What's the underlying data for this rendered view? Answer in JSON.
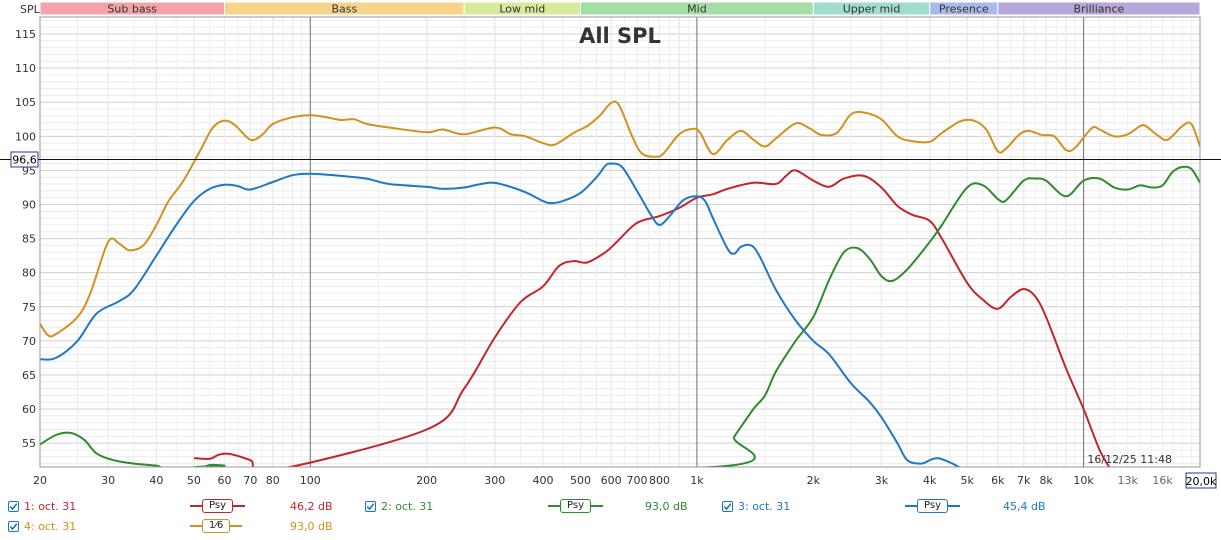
{
  "chart_data": {
    "type": "line",
    "title": "All SPL",
    "ylabel": "SPL",
    "x_scale": "log",
    "xlim": [
      20,
      20000
    ],
    "ylim": [
      51.5,
      117.5
    ],
    "y_ticks": [
      55,
      60,
      65,
      70,
      75,
      80,
      85,
      90,
      95,
      100,
      105,
      110,
      115
    ],
    "x_tick_labels": [
      {
        "x": 20,
        "label": "20"
      },
      {
        "x": 30,
        "label": "30"
      },
      {
        "x": 40,
        "label": "40"
      },
      {
        "x": 50,
        "label": "50"
      },
      {
        "x": 60,
        "label": "60"
      },
      {
        "x": 70,
        "label": "70"
      },
      {
        "x": 80,
        "label": "80"
      },
      {
        "x": 100,
        "label": "100"
      },
      {
        "x": 200,
        "label": "200"
      },
      {
        "x": 300,
        "label": "300"
      },
      {
        "x": 400,
        "label": "400"
      },
      {
        "x": 500,
        "label": "500"
      },
      {
        "x": 600,
        "label": "600"
      },
      {
        "x": 700,
        "label": "700"
      },
      {
        "x": 800,
        "label": "800"
      },
      {
        "x": 1000,
        "label": "1k"
      },
      {
        "x": 2000,
        "label": "2k"
      },
      {
        "x": 3000,
        "label": "3k"
      },
      {
        "x": 4000,
        "label": "4k"
      },
      {
        "x": 5000,
        "label": "5k"
      },
      {
        "x": 6000,
        "label": "6k"
      },
      {
        "x": 7000,
        "label": "7k"
      },
      {
        "x": 8000,
        "label": "8k"
      },
      {
        "x": 10000,
        "label": "10k"
      },
      {
        "x": 13000,
        "label": "13k"
      },
      {
        "x": 16000,
        "label": "16k"
      }
    ],
    "x_end_label": "20,0k",
    "cursor_value_label": "96,6",
    "cursor_value": 96.6,
    "timestamp": "16/12/25 11:48",
    "bands": [
      {
        "name": "Sub bass",
        "from": 20,
        "to": 60,
        "color": "#f4a3a8"
      },
      {
        "name": "Bass",
        "from": 60,
        "to": 250,
        "color": "#f6d58b"
      },
      {
        "name": "Low mid",
        "from": 250,
        "to": 500,
        "color": "#d5ec9a"
      },
      {
        "name": "Mid",
        "from": 500,
        "to": 2000,
        "color": "#a4dea6"
      },
      {
        "name": "Upper mid",
        "from": 2000,
        "to": 4000,
        "color": "#9fdcd2"
      },
      {
        "name": "Presence",
        "from": 4000,
        "to": 6000,
        "color": "#a9b9ea"
      },
      {
        "name": "Brilliance",
        "from": 6000,
        "to": 20000,
        "color": "#b8a6d9"
      }
    ],
    "series": [
      {
        "name": "1: oct. 31",
        "color": "#c0262a",
        "legend_value": "46,2 dB",
        "points": [
          [
            50,
            52.8
          ],
          [
            55,
            52.7
          ],
          [
            58,
            53.3
          ],
          [
            62,
            53.4
          ],
          [
            70,
            52.5
          ],
          [
            80,
            51
          ],
          [
            200,
            57
          ],
          [
            250,
            63
          ],
          [
            300,
            70.5
          ],
          [
            350,
            75.7
          ],
          [
            400,
            78
          ],
          [
            440,
            81
          ],
          [
            480,
            81.7
          ],
          [
            520,
            81.5
          ],
          [
            580,
            83
          ],
          [
            620,
            84.5
          ],
          [
            700,
            87.3
          ],
          [
            800,
            88.3
          ],
          [
            900,
            89.5
          ],
          [
            1000,
            91
          ],
          [
            1100,
            91.5
          ],
          [
            1200,
            92.3
          ],
          [
            1400,
            93.2
          ],
          [
            1600,
            93
          ],
          [
            1700,
            94.2
          ],
          [
            1800,
            95
          ],
          [
            2000,
            93.5
          ],
          [
            2200,
            92.6
          ],
          [
            2400,
            93.8
          ],
          [
            2700,
            94.2
          ],
          [
            3000,
            92.5
          ],
          [
            3300,
            89.8
          ],
          [
            3600,
            88.5
          ],
          [
            4000,
            87.6
          ],
          [
            4300,
            85
          ],
          [
            5000,
            78.5
          ],
          [
            5500,
            76
          ],
          [
            6000,
            74.7
          ],
          [
            6500,
            76.5
          ],
          [
            7000,
            77.6
          ],
          [
            7500,
            76.5
          ],
          [
            8000,
            73.5
          ],
          [
            9000,
            66
          ],
          [
            10000,
            60
          ],
          [
            11000,
            54
          ],
          [
            11800,
            51
          ]
        ]
      },
      {
        "name": "2: oct. 31",
        "color": "#2e8b2e",
        "legend_value": "93,0 dB",
        "points": [
          [
            20,
            54.8
          ],
          [
            22,
            56.2
          ],
          [
            24,
            56.5
          ],
          [
            26,
            55.5
          ],
          [
            28,
            53.5
          ],
          [
            31,
            52.5
          ],
          [
            35,
            52
          ],
          [
            40,
            51.7
          ],
          [
            42,
            51.4
          ],
          [
            52,
            51.4
          ],
          [
            55,
            51.8
          ],
          [
            60,
            51.7
          ],
          [
            62,
            51.4
          ],
          [
            1100,
            51.5
          ],
          [
            1250,
            56
          ],
          [
            1400,
            60
          ],
          [
            1500,
            62
          ],
          [
            1600,
            65.5
          ],
          [
            1800,
            70
          ],
          [
            2000,
            73.5
          ],
          [
            2200,
            79
          ],
          [
            2400,
            83
          ],
          [
            2600,
            83.6
          ],
          [
            2800,
            82
          ],
          [
            3000,
            79.5
          ],
          [
            3200,
            78.8
          ],
          [
            3500,
            80.5
          ],
          [
            4000,
            84.5
          ],
          [
            4300,
            87
          ],
          [
            5000,
            92.5
          ],
          [
            5500,
            92.8
          ],
          [
            6000,
            90.8
          ],
          [
            6300,
            90.6
          ],
          [
            7000,
            93.5
          ],
          [
            7500,
            93.8
          ],
          [
            8000,
            93.5
          ],
          [
            9000,
            91.2
          ],
          [
            10000,
            93.5
          ],
          [
            11000,
            93.8
          ],
          [
            12000,
            92.5
          ],
          [
            13000,
            92.2
          ],
          [
            14000,
            92.8
          ],
          [
            15000,
            92.5
          ],
          [
            16000,
            92.8
          ],
          [
            17000,
            94.8
          ],
          [
            18000,
            95.5
          ],
          [
            19000,
            95.2
          ],
          [
            20000,
            93.2
          ]
        ]
      },
      {
        "name": "3: oct. 31",
        "color": "#1f78c6",
        "legend_value": "45,4 dB",
        "points": [
          [
            20,
            67.3
          ],
          [
            22,
            67.5
          ],
          [
            25,
            70
          ],
          [
            28,
            74
          ],
          [
            32,
            75.8
          ],
          [
            35,
            77.5
          ],
          [
            40,
            82.5
          ],
          [
            45,
            87
          ],
          [
            50,
            90.5
          ],
          [
            55,
            92.3
          ],
          [
            60,
            92.9
          ],
          [
            65,
            92.7
          ],
          [
            70,
            92.2
          ],
          [
            80,
            93.3
          ],
          [
            90,
            94.3
          ],
          [
            100,
            94.5
          ],
          [
            120,
            94.2
          ],
          [
            140,
            93.8
          ],
          [
            160,
            93
          ],
          [
            200,
            92.6
          ],
          [
            220,
            92.3
          ],
          [
            250,
            92.5
          ],
          [
            290,
            93.2
          ],
          [
            320,
            92.8
          ],
          [
            360,
            91.8
          ],
          [
            400,
            90.5
          ],
          [
            420,
            90.2
          ],
          [
            450,
            90.5
          ],
          [
            500,
            91.7
          ],
          [
            550,
            94
          ],
          [
            580,
            95.7
          ],
          [
            600,
            96
          ],
          [
            640,
            95.5
          ],
          [
            700,
            92
          ],
          [
            760,
            88.5
          ],
          [
            800,
            87
          ],
          [
            850,
            88.3
          ],
          [
            920,
            90.6
          ],
          [
            1000,
            91.2
          ],
          [
            1050,
            90.5
          ],
          [
            1100,
            88
          ],
          [
            1200,
            83.5
          ],
          [
            1250,
            82.8
          ],
          [
            1300,
            83.8
          ],
          [
            1380,
            84
          ],
          [
            1450,
            82.5
          ],
          [
            1600,
            77.5
          ],
          [
            1800,
            73
          ],
          [
            2000,
            70
          ],
          [
            2200,
            68
          ],
          [
            2500,
            63.8
          ],
          [
            2800,
            61
          ],
          [
            3000,
            58.8
          ],
          [
            3300,
            55
          ],
          [
            3500,
            52.5
          ],
          [
            3800,
            52
          ],
          [
            4000,
            52.5
          ],
          [
            4200,
            52.8
          ],
          [
            4500,
            52.2
          ],
          [
            4800,
            51.4
          ]
        ]
      },
      {
        "name": "4: oct. 31",
        "color": "#d4901c",
        "legend_value": "93,0 dB",
        "points": [
          [
            20,
            72.5
          ],
          [
            21,
            70.8
          ],
          [
            22,
            71
          ],
          [
            25,
            73.5
          ],
          [
            27,
            77
          ],
          [
            30,
            84.5
          ],
          [
            32,
            84.3
          ],
          [
            34,
            83.3
          ],
          [
            37,
            84
          ],
          [
            40,
            87
          ],
          [
            43,
            90.5
          ],
          [
            47,
            93.5
          ],
          [
            52,
            98
          ],
          [
            56,
            101.3
          ],
          [
            60,
            102.3
          ],
          [
            64,
            101.6
          ],
          [
            70,
            99.5
          ],
          [
            75,
            100.2
          ],
          [
            80,
            101.8
          ],
          [
            90,
            102.8
          ],
          [
            100,
            103.1
          ],
          [
            110,
            102.8
          ],
          [
            120,
            102.4
          ],
          [
            130,
            102.5
          ],
          [
            140,
            101.8
          ],
          [
            160,
            101.3
          ],
          [
            200,
            100.6
          ],
          [
            220,
            101
          ],
          [
            250,
            100.3
          ],
          [
            300,
            101.3
          ],
          [
            330,
            100.3
          ],
          [
            360,
            100
          ],
          [
            400,
            99
          ],
          [
            430,
            98.8
          ],
          [
            480,
            100.5
          ],
          [
            520,
            101.5
          ],
          [
            560,
            103
          ],
          [
            600,
            104.9
          ],
          [
            630,
            104.5
          ],
          [
            680,
            100
          ],
          [
            720,
            97.5
          ],
          [
            780,
            97
          ],
          [
            820,
            97.5
          ],
          [
            900,
            100.3
          ],
          [
            980,
            101.1
          ],
          [
            1020,
            100.5
          ],
          [
            1100,
            97.4
          ],
          [
            1200,
            99.5
          ],
          [
            1300,
            100.8
          ],
          [
            1400,
            99.5
          ],
          [
            1500,
            98.5
          ],
          [
            1600,
            99.7
          ],
          [
            1800,
            101.9
          ],
          [
            1950,
            101.2
          ],
          [
            2100,
            100.2
          ],
          [
            2300,
            100.5
          ],
          [
            2500,
            103.2
          ],
          [
            2700,
            103.5
          ],
          [
            3000,
            102.5
          ],
          [
            3300,
            100
          ],
          [
            3600,
            99.3
          ],
          [
            4000,
            99.2
          ],
          [
            4300,
            100.5
          ],
          [
            4800,
            102.2
          ],
          [
            5200,
            102.3
          ],
          [
            5600,
            101
          ],
          [
            6000,
            97.8
          ],
          [
            6300,
            98.2
          ],
          [
            6800,
            100.2
          ],
          [
            7200,
            100.8
          ],
          [
            7800,
            100.2
          ],
          [
            8400,
            100
          ],
          [
            9000,
            98
          ],
          [
            9500,
            98.3
          ],
          [
            10500,
            101.2
          ],
          [
            11000,
            101
          ],
          [
            12000,
            100
          ],
          [
            13000,
            100.3
          ],
          [
            14000,
            101.5
          ],
          [
            14500,
            101.5
          ],
          [
            15500,
            100.2
          ],
          [
            16500,
            99.5
          ],
          [
            18000,
            101.5
          ],
          [
            19000,
            101.8
          ],
          [
            20000,
            98.5
          ]
        ]
      }
    ],
    "legend": [
      {
        "label": "1: oct. 31",
        "symbol": "Psy",
        "value": "46,2 dB",
        "color": "#c0262a"
      },
      {
        "label": "2: oct. 31",
        "symbol": "Psy",
        "value": "93,0 dB",
        "color": "#2e8b2e"
      },
      {
        "label": "3: oct. 31",
        "symbol": "Psy",
        "value": "45,4 dB",
        "color": "#1f78c6"
      },
      {
        "label": "4: oct. 31",
        "symbol": "1⁄6",
        "value": "93,0 dB",
        "color": "#d4901c"
      }
    ]
  }
}
